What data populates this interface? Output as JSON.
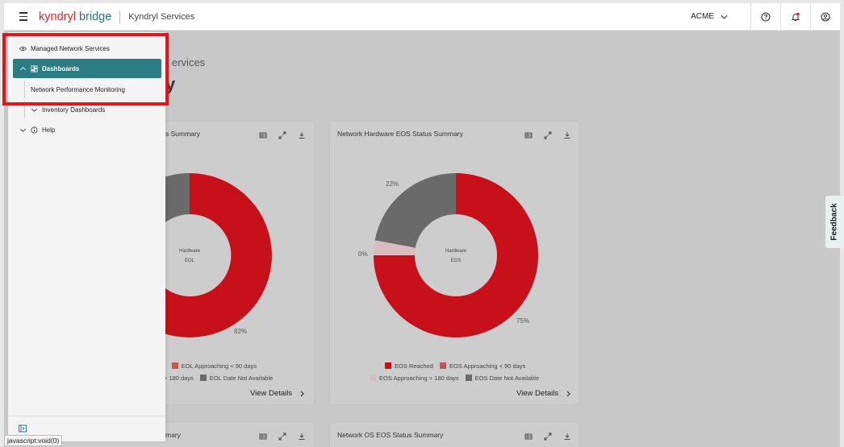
{
  "header": {
    "brand_kyndryl": "kyndryl",
    "brand_bridge": "bridge",
    "app_title": "Kyndryl Services",
    "tenant": "ACME"
  },
  "page": {
    "breadcrumb": "ervices",
    "heading": "y"
  },
  "sidebar": {
    "items": [
      {
        "label": "Managed Network Services",
        "icon": "eye-icon"
      },
      {
        "label": "Dashboards",
        "icon": "dashboard-icon",
        "active": true
      },
      {
        "label": "Network Performance Monitoring"
      },
      {
        "label": "Inventory Dashboards"
      },
      {
        "label": "Help",
        "icon": "info-icon"
      }
    ]
  },
  "cards": [
    {
      "title": "s Summary",
      "center_line1": "Hardware",
      "center_line2": "EOL",
      "pct_main": "82%",
      "legend": [
        {
          "label": "EOL Approaching < 90 days",
          "color": "#c6525a"
        },
        {
          "label": "> 180 days",
          "color": ""
        },
        {
          "label": "EOL Date Not Available",
          "color": "#6a6a6a"
        }
      ],
      "legend_cut": "l",
      "view_details": "View Details"
    },
    {
      "title": "Network Hardware EOS Status Summary",
      "center_line1": "Hardware",
      "center_line2": "EOS",
      "pct_a": "22%",
      "pct_b": "0%",
      "pct_c": "75%",
      "legend": [
        {
          "label": "EOS Reached",
          "color": "#c8101b"
        },
        {
          "label": "EOS Approaching < 90 days",
          "color": "#c6525a"
        },
        {
          "label": "EOS Approaching > 180 days",
          "color": "#d9bcc0"
        },
        {
          "label": "EOS Date Not Available",
          "color": "#6a6a6a"
        }
      ],
      "view_details": "View Details"
    },
    {
      "title": "mary"
    },
    {
      "title": "Network OS EOS Status Summary"
    }
  ],
  "feedback": "Feedback",
  "status_url": "javascript:void(0)",
  "colors": {
    "accent": "#2b7c83",
    "red": "#c8101b",
    "grey": "#6a6a6a",
    "highlight": "#e8141c"
  }
}
